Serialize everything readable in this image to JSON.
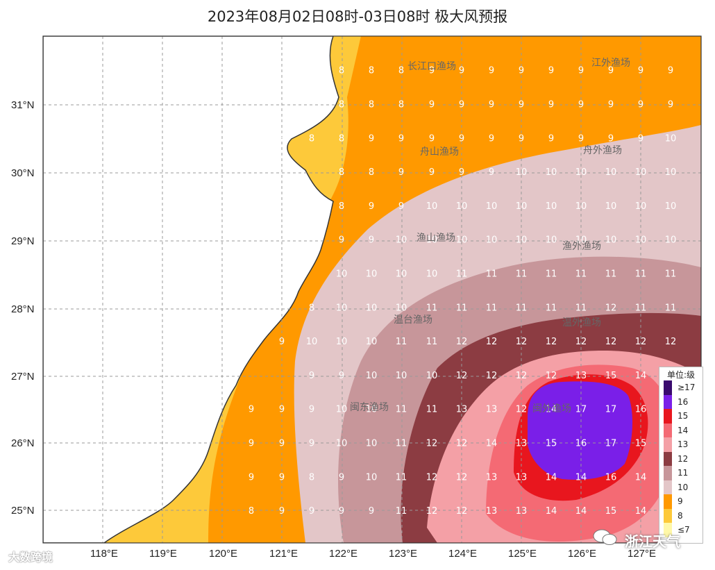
{
  "title": "2023年08月02日08时-03日08时 极大风预报",
  "lon_labels": [
    "118°E",
    "119°E",
    "120°E",
    "121°E",
    "122°E",
    "123°E",
    "124°E",
    "125°E",
    "126°E",
    "127°E"
  ],
  "lat_labels": [
    "31°N",
    "30°N",
    "29°N",
    "28°N",
    "27°N",
    "26°N",
    "25°N"
  ],
  "legend": {
    "title": "单位:级",
    "items": [
      {
        "label": "≥17",
        "color": "#3a0a6e"
      },
      {
        "label": "16",
        "color": "#7a1fe8"
      },
      {
        "label": "15",
        "color": "#e8161e"
      },
      {
        "label": "14",
        "color": "#f46a74"
      },
      {
        "label": "13",
        "color": "#f4a0a6"
      },
      {
        "label": "12",
        "color": "#8c3c42"
      },
      {
        "label": "11",
        "color": "#c7969a"
      },
      {
        "label": "10",
        "color": "#e3c6c8"
      },
      {
        "label": "9",
        "color": "#ff9900"
      },
      {
        "label": "8",
        "color": "#fdc93a"
      },
      {
        "label": "≤7",
        "color": "#fff8a8"
      }
    ]
  },
  "fishing_grounds": [
    {
      "name": "长江口渔场"
    },
    {
      "name": "江外渔场"
    },
    {
      "name": "舟山渔场"
    },
    {
      "name": "舟外渔场"
    },
    {
      "name": "渔山渔场"
    },
    {
      "name": "渔外渔场"
    },
    {
      "name": "温台渔场"
    },
    {
      "name": "温外渔场"
    },
    {
      "name": "闽东渔场"
    },
    {
      "name": "闽外渔场"
    }
  ],
  "wind_grid_rows": [
    {
      "lat": "31.5",
      "values": [
        "8",
        "8",
        "8",
        "9",
        "9",
        "9",
        "9",
        "9",
        "9",
        "9",
        "9",
        "9"
      ]
    },
    {
      "lat": "31",
      "values": [
        "8",
        "8",
        "8",
        "9",
        "9",
        "9",
        "9",
        "9",
        "9",
        "9",
        "9",
        "9"
      ]
    },
    {
      "lat": "30.5",
      "values": [
        "8",
        "8",
        "8",
        "9",
        "9",
        "9",
        "9",
        "9",
        "9",
        "9",
        "9",
        "9",
        "9",
        "10"
      ]
    },
    {
      "lat": "30",
      "values": [
        "8",
        "8",
        "9",
        "9",
        "9",
        "9",
        "10",
        "10",
        "10",
        "10",
        "10",
        "10"
      ]
    },
    {
      "lat": "29.5",
      "values": [
        "8",
        "9",
        "9",
        "10",
        "10",
        "10",
        "10",
        "10",
        "10",
        "10",
        "10",
        "10"
      ]
    },
    {
      "lat": "29",
      "values": [
        "9",
        "9",
        "10",
        "10",
        "10",
        "10",
        "10",
        "10",
        "10",
        "10",
        "10",
        "10"
      ]
    },
    {
      "lat": "28.5",
      "values": [
        "10",
        "10",
        "10",
        "10",
        "11",
        "11",
        "11",
        "11",
        "11",
        "11",
        "11",
        "11"
      ]
    },
    {
      "lat": "28",
      "values": [
        "8",
        "10",
        "10",
        "10",
        "11",
        "11",
        "11",
        "11",
        "11",
        "11",
        "12",
        "11",
        "11"
      ]
    },
    {
      "lat": "27.5",
      "values": [
        "9",
        "10",
        "10",
        "10",
        "11",
        "11",
        "12",
        "12",
        "12",
        "12",
        "12",
        "12",
        "12",
        "12"
      ]
    },
    {
      "lat": "27",
      "values": [
        "9",
        "9",
        "10",
        "10",
        "10",
        "12",
        "12",
        "12",
        "12",
        "13",
        "15",
        "14",
        "14"
      ]
    },
    {
      "lat": "26.5",
      "values": [
        "9",
        "9",
        "9",
        "10",
        "10",
        "11",
        "11",
        "13",
        "13",
        "12",
        "14",
        "17",
        "17",
        "16",
        "14"
      ]
    },
    {
      "lat": "26",
      "values": [
        "9",
        "9",
        "9",
        "10",
        "10",
        "11",
        "12",
        "12",
        "14",
        "13",
        "15",
        "16",
        "17",
        "15",
        "13"
      ]
    },
    {
      "lat": "25.5",
      "values": [
        "9",
        "9",
        "8",
        "9",
        "10",
        "11",
        "12",
        "12",
        "13",
        "13",
        "14",
        "14",
        "16",
        "14",
        "14"
      ]
    },
    {
      "lat": "25",
      "values": [
        "8",
        "9",
        "9",
        "9",
        "9",
        "11",
        "12",
        "12",
        "13",
        "13",
        "14",
        "14",
        "15",
        "14",
        "13"
      ]
    }
  ],
  "watermark_left": "大数跨境",
  "watermark_right": "浙江天气"
}
